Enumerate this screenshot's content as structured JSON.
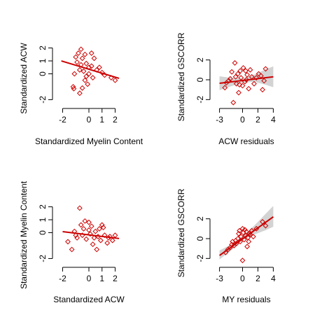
{
  "colors": {
    "points": "#cc0000",
    "fit_line": "#cc0000",
    "confidence_band": "#d3d3d3",
    "axes": "#000000",
    "background": "#ffffff"
  },
  "chart_data": [
    {
      "type": "scatter",
      "xlabel": "Standardized Myelin Content",
      "ylabel": "Standardized ACW",
      "xlim": [
        -2.4,
        2.4
      ],
      "ylim": [
        -2.3,
        2.3
      ],
      "xticks": [
        -2,
        0,
        1,
        2
      ],
      "yticks": [
        -2,
        0,
        1,
        2
      ],
      "marker": "diamond-open",
      "confidence_band": false,
      "points": [
        {
          "x": -1.2,
          "y": -1.0
        },
        {
          "x": -1.15,
          "y": -1.15
        },
        {
          "x": -0.7,
          "y": -1.5
        },
        {
          "x": -1.0,
          "y": 1.3
        },
        {
          "x": -0.8,
          "y": 1.6
        },
        {
          "x": -0.6,
          "y": 1.9
        },
        {
          "x": -0.5,
          "y": 1.2
        },
        {
          "x": -0.9,
          "y": 0.9
        },
        {
          "x": -0.6,
          "y": 0.7
        },
        {
          "x": -0.3,
          "y": 1.5
        },
        {
          "x": -0.7,
          "y": 0.3
        },
        {
          "x": -0.4,
          "y": 0.2
        },
        {
          "x": -1.1,
          "y": 0.0
        },
        {
          "x": -0.2,
          "y": 0.8
        },
        {
          "x": 0.0,
          "y": 0.5
        },
        {
          "x": 0.2,
          "y": 0.6
        },
        {
          "x": 0.4,
          "y": 1.2
        },
        {
          "x": 0.6,
          "y": 0.3
        },
        {
          "x": 0.3,
          "y": -0.3
        },
        {
          "x": -0.3,
          "y": -0.5
        },
        {
          "x": -0.1,
          "y": -0.8
        },
        {
          "x": 0.0,
          "y": 0.0
        },
        {
          "x": 1.0,
          "y": 0.1
        },
        {
          "x": 1.2,
          "y": -0.1
        },
        {
          "x": 0.8,
          "y": 0.5
        },
        {
          "x": 2.0,
          "y": -0.5
        },
        {
          "x": 1.7,
          "y": -0.3
        },
        {
          "x": -0.2,
          "y": -0.2
        },
        {
          "x": -0.5,
          "y": -1.1
        },
        {
          "x": 0.2,
          "y": 1.6
        }
      ],
      "fit": {
        "x": [
          -2.1,
          2.3
        ],
        "y": [
          1.0,
          -0.35
        ]
      }
    },
    {
      "type": "scatter",
      "xlabel": "ACW residuals",
      "ylabel": "Standardized GSCORR",
      "xlim": [
        -3.6,
        4.6
      ],
      "ylim": [
        -2.4,
        3.6
      ],
      "xticks": [
        -3,
        0,
        2,
        4
      ],
      "yticks": [
        -2,
        0,
        2
      ],
      "marker": "diamond-open",
      "confidence_band": true,
      "points": [
        {
          "x": -2.3,
          "y": -0.8
        },
        {
          "x": -2.1,
          "y": -0.3
        },
        {
          "x": -1.6,
          "y": 0.1
        },
        {
          "x": -1.4,
          "y": 0.8
        },
        {
          "x": -1.2,
          "y": -2.3
        },
        {
          "x": -1.0,
          "y": 1.7
        },
        {
          "x": -0.8,
          "y": -0.4
        },
        {
          "x": -0.6,
          "y": 0.6
        },
        {
          "x": -0.5,
          "y": -1.3
        },
        {
          "x": -0.3,
          "y": 0.9
        },
        {
          "x": -0.2,
          "y": 0.2
        },
        {
          "x": 0.0,
          "y": -0.6
        },
        {
          "x": 0.1,
          "y": 1.2
        },
        {
          "x": 0.3,
          "y": -0.2
        },
        {
          "x": 0.5,
          "y": 0.0
        },
        {
          "x": 0.6,
          "y": 0.5
        },
        {
          "x": 0.8,
          "y": -0.9
        },
        {
          "x": 1.0,
          "y": 1.0
        },
        {
          "x": 1.2,
          "y": 0.3
        },
        {
          "x": 1.5,
          "y": -0.4
        },
        {
          "x": 1.8,
          "y": 0.2
        },
        {
          "x": 2.1,
          "y": 0.6
        },
        {
          "x": 2.4,
          "y": 0.4
        },
        {
          "x": 2.8,
          "y": -0.1
        },
        {
          "x": 3.0,
          "y": 1.1
        },
        {
          "x": -1.8,
          "y": -0.1
        },
        {
          "x": -0.9,
          "y": 0.3
        },
        {
          "x": 0.4,
          "y": 0.9
        },
        {
          "x": 2.6,
          "y": -1.0
        },
        {
          "x": -0.4,
          "y": -0.5
        }
      ],
      "fit": {
        "x": [
          -3.0,
          4.0
        ],
        "y": [
          -0.35,
          0.3
        ]
      },
      "band": {
        "x": [
          -3.0,
          -1.5,
          0.0,
          1.5,
          3.0,
          4.0
        ],
        "lower": [
          -1.05,
          -0.65,
          -0.3,
          -0.2,
          -0.5,
          -0.75
        ],
        "upper": [
          0.35,
          0.2,
          0.15,
          0.5,
          1.05,
          1.35
        ]
      }
    },
    {
      "type": "scatter",
      "xlabel": "Standardized ACW",
      "ylabel": "Standardized Myelin Content",
      "xlim": [
        -2.4,
        2.4
      ],
      "ylim": [
        -2.3,
        2.3
      ],
      "xticks": [
        -2,
        0,
        1,
        2
      ],
      "yticks": [
        -2,
        0,
        1,
        2
      ],
      "marker": "diamond-open",
      "confidence_band": false,
      "points": [
        {
          "x": -1.6,
          "y": -0.7
        },
        {
          "x": -1.3,
          "y": -1.3
        },
        {
          "x": -1.1,
          "y": 0.1
        },
        {
          "x": -0.9,
          "y": -0.4
        },
        {
          "x": -0.7,
          "y": 1.9
        },
        {
          "x": -0.6,
          "y": 0.6
        },
        {
          "x": -0.4,
          "y": 0.3
        },
        {
          "x": -0.3,
          "y": 0.9
        },
        {
          "x": -0.2,
          "y": -0.5
        },
        {
          "x": 0.0,
          "y": 0.2
        },
        {
          "x": 0.1,
          "y": -0.1
        },
        {
          "x": 0.2,
          "y": 0.5
        },
        {
          "x": 0.3,
          "y": -0.9
        },
        {
          "x": 0.5,
          "y": 0.1
        },
        {
          "x": 0.6,
          "y": -1.3
        },
        {
          "x": 0.8,
          "y": 0.3
        },
        {
          "x": 0.9,
          "y": -0.6
        },
        {
          "x": 1.1,
          "y": 0.4
        },
        {
          "x": 1.2,
          "y": -0.2
        },
        {
          "x": 1.4,
          "y": -0.8
        },
        {
          "x": 1.6,
          "y": -0.3
        },
        {
          "x": 1.8,
          "y": -0.6
        },
        {
          "x": 2.0,
          "y": -0.2
        },
        {
          "x": -0.5,
          "y": -0.2
        },
        {
          "x": 0.4,
          "y": -0.4
        },
        {
          "x": 1.0,
          "y": 0.6
        },
        {
          "x": -1.0,
          "y": -0.2
        },
        {
          "x": 0.7,
          "y": -0.3
        },
        {
          "x": 1.5,
          "y": -0.4
        },
        {
          "x": 0.0,
          "y": 0.8
        }
      ],
      "fit": {
        "x": [
          -2.0,
          2.3
        ],
        "y": [
          0.08,
          -0.45
        ]
      }
    },
    {
      "type": "scatter",
      "xlabel": "MY residuals",
      "ylabel": "Standardized GSCORR",
      "xlim": [
        -3.6,
        4.6
      ],
      "ylim": [
        -2.4,
        3.6
      ],
      "xticks": [
        -3,
        0,
        2,
        4
      ],
      "yticks": [
        -2,
        0,
        2
      ],
      "marker": "diamond-open",
      "confidence_band": true,
      "points": [
        {
          "x": -2.2,
          "y": -1.4
        },
        {
          "x": -1.9,
          "y": -1.1
        },
        {
          "x": -1.6,
          "y": -0.9
        },
        {
          "x": -1.4,
          "y": -0.6
        },
        {
          "x": -1.3,
          "y": -0.3
        },
        {
          "x": -1.1,
          "y": -0.7
        },
        {
          "x": -0.9,
          "y": -0.2
        },
        {
          "x": -0.8,
          "y": -0.5
        },
        {
          "x": -0.6,
          "y": 0.0
        },
        {
          "x": -0.5,
          "y": 0.5
        },
        {
          "x": -0.3,
          "y": -0.3
        },
        {
          "x": -0.2,
          "y": 0.2
        },
        {
          "x": 0.0,
          "y": -2.2
        },
        {
          "x": 0.1,
          "y": 0.6
        },
        {
          "x": 0.2,
          "y": -0.1
        },
        {
          "x": 0.3,
          "y": 0.9
        },
        {
          "x": 0.4,
          "y": 0.3
        },
        {
          "x": 0.5,
          "y": 0.7
        },
        {
          "x": 0.6,
          "y": -0.8
        },
        {
          "x": 0.7,
          "y": 0.1
        },
        {
          "x": 0.9,
          "y": 0.5
        },
        {
          "x": 1.0,
          "y": 0.4
        },
        {
          "x": 1.2,
          "y": 0.8
        },
        {
          "x": 1.4,
          "y": 0.2
        },
        {
          "x": 1.8,
          "y": 1.0
        },
        {
          "x": 2.6,
          "y": 1.7
        },
        {
          "x": 3.0,
          "y": 1.3
        },
        {
          "x": -0.4,
          "y": 0.8
        },
        {
          "x": 0.0,
          "y": 1.0
        },
        {
          "x": 0.8,
          "y": -0.3
        }
      ],
      "fit": {
        "x": [
          -3.0,
          4.0
        ],
        "y": [
          -1.7,
          2.2
        ]
      },
      "band": {
        "x": [
          -3.0,
          -1.5,
          0.0,
          1.5,
          3.0,
          4.0
        ],
        "lower": [
          -2.1,
          -1.2,
          -0.15,
          0.4,
          0.85,
          1.2
        ],
        "upper": [
          -1.2,
          -0.6,
          0.3,
          1.3,
          2.5,
          3.3
        ]
      }
    }
  ]
}
